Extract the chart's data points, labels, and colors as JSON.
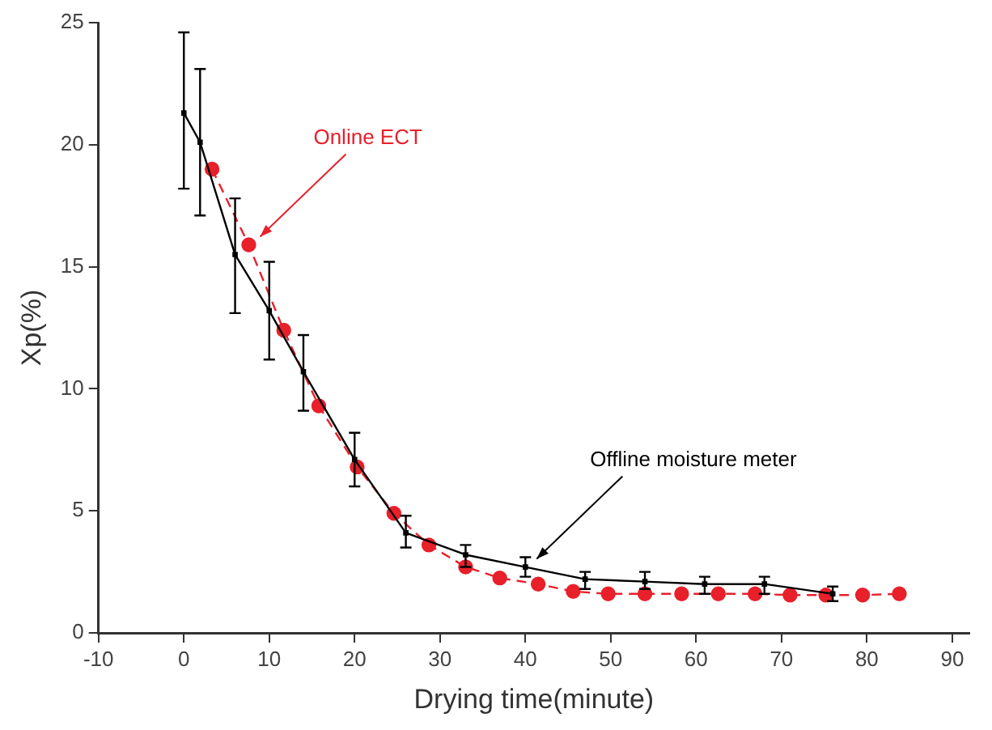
{
  "chart_data": {
    "type": "line",
    "xlabel": "Drying time(minute)",
    "ylabel": "Xp(%)",
    "xlim": [
      -10,
      92
    ],
    "xticks": [
      -10,
      0,
      10,
      20,
      30,
      40,
      50,
      60,
      70,
      80,
      90
    ],
    "ylim": [
      0,
      25
    ],
    "yticks": [
      0,
      5,
      10,
      15,
      20,
      25
    ],
    "grid": false,
    "legend": false,
    "series": [
      {
        "name": "Offline moisture meter",
        "color": "#000000",
        "marker": "square",
        "line_style": "solid",
        "x": [
          0,
          1.9,
          6,
          10,
          14,
          20,
          26,
          33,
          40,
          47,
          54,
          61,
          68,
          76
        ],
        "values": [
          21.3,
          20.1,
          15.5,
          13.2,
          10.7,
          7.1,
          4.1,
          3.2,
          2.7,
          2.2,
          2.1,
          2.0,
          2.0,
          1.6
        ],
        "errors": [
          [
            18.2,
            24.6
          ],
          [
            17.1,
            23.1
          ],
          [
            13.1,
            17.8
          ],
          [
            11.2,
            15.2
          ],
          [
            9.1,
            12.2
          ],
          [
            6.0,
            8.2
          ],
          [
            3.5,
            4.8
          ],
          [
            2.7,
            3.6
          ],
          [
            2.3,
            3.1
          ],
          [
            1.8,
            2.5
          ],
          [
            1.8,
            2.5
          ],
          [
            1.6,
            2.3
          ],
          [
            1.6,
            2.3
          ],
          [
            1.3,
            1.9
          ]
        ]
      },
      {
        "name": "Online ECT",
        "color": "#e8202a",
        "marker": "circle",
        "line_style": "dashed",
        "x": [
          3.3,
          7.6,
          11.7,
          15.8,
          20.3,
          24.6,
          28.7,
          33,
          37,
          41.5,
          45.6,
          49.7,
          54,
          58.3,
          62.6,
          66.9,
          71,
          75.2,
          79.5,
          83.8
        ],
        "values": [
          19.0,
          15.9,
          12.4,
          9.3,
          6.8,
          4.9,
          3.6,
          2.7,
          2.25,
          2.0,
          1.7,
          1.6,
          1.6,
          1.6,
          1.6,
          1.6,
          1.55,
          1.55,
          1.55,
          1.6
        ]
      }
    ]
  }
}
